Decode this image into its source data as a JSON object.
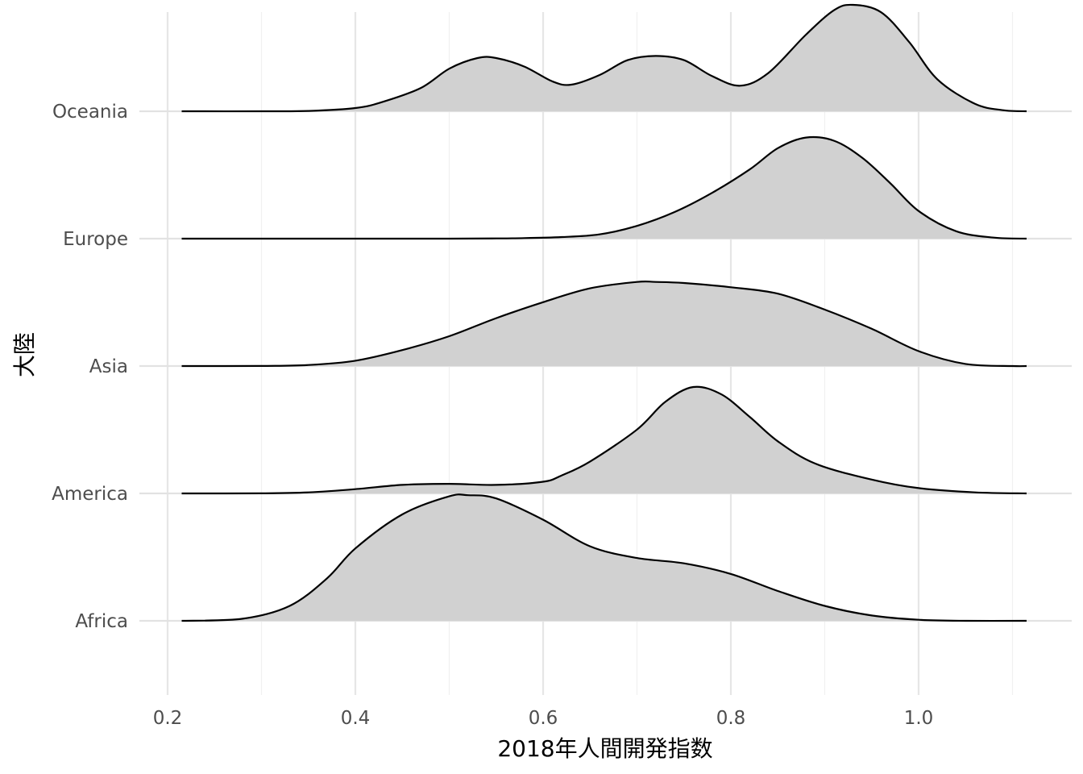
{
  "chart_data": {
    "type": "ridgeline",
    "xlabel": "2018年人間開発指数",
    "ylabel": "大陸",
    "xlim": [
      0.2,
      1.12
    ],
    "x_ticks": [
      "0.2",
      "0.4",
      "0.6",
      "0.8",
      "1.0"
    ],
    "x_tick_values": [
      0.2,
      0.4,
      0.6,
      0.8,
      1.0
    ],
    "categories": [
      "Africa",
      "America",
      "Asia",
      "Europe",
      "Oceania"
    ],
    "fill_color": "#d1d1d1",
    "line_color": "#000000",
    "grid": true,
    "series": [
      {
        "name": "Oceania",
        "x": [
          0.215,
          0.3,
          0.35,
          0.4,
          0.43,
          0.47,
          0.5,
          0.53,
          0.55,
          0.58,
          0.61,
          0.63,
          0.66,
          0.69,
          0.72,
          0.75,
          0.78,
          0.81,
          0.84,
          0.88,
          0.91,
          0.93,
          0.96,
          0.99,
          1.02,
          1.06,
          1.09,
          1.115
        ],
        "y": [
          0.0,
          0.0,
          0.003,
          0.03,
          0.09,
          0.22,
          0.4,
          0.5,
          0.5,
          0.42,
          0.28,
          0.25,
          0.34,
          0.48,
          0.52,
          0.48,
          0.33,
          0.24,
          0.36,
          0.72,
          0.95,
          1.0,
          0.93,
          0.65,
          0.3,
          0.07,
          0.01,
          0.0
        ]
      },
      {
        "name": "Europe",
        "x": [
          0.215,
          0.4,
          0.5,
          0.55,
          0.58,
          0.62,
          0.66,
          0.7,
          0.74,
          0.78,
          0.82,
          0.85,
          0.88,
          0.91,
          0.94,
          0.97,
          1.0,
          1.04,
          1.08,
          1.115
        ],
        "y": [
          0.0,
          0.0,
          0.0,
          0.002,
          0.005,
          0.015,
          0.04,
          0.12,
          0.25,
          0.43,
          0.65,
          0.85,
          0.95,
          0.92,
          0.76,
          0.52,
          0.26,
          0.07,
          0.01,
          0.0
        ]
      },
      {
        "name": "Asia",
        "x": [
          0.215,
          0.3,
          0.35,
          0.4,
          0.45,
          0.5,
          0.55,
          0.6,
          0.65,
          0.7,
          0.72,
          0.75,
          0.8,
          0.85,
          0.9,
          0.95,
          1.0,
          1.05,
          1.1,
          1.115
        ],
        "y": [
          0.0,
          0.001,
          0.01,
          0.05,
          0.15,
          0.28,
          0.45,
          0.6,
          0.73,
          0.79,
          0.79,
          0.78,
          0.74,
          0.68,
          0.53,
          0.35,
          0.14,
          0.02,
          0.0,
          0.0
        ]
      },
      {
        "name": "America",
        "x": [
          0.215,
          0.3,
          0.35,
          0.4,
          0.45,
          0.5,
          0.55,
          0.6,
          0.62,
          0.65,
          0.7,
          0.73,
          0.76,
          0.79,
          0.82,
          0.85,
          0.89,
          0.95,
          1.0,
          1.06,
          1.115
        ],
        "y": [
          0.0,
          0.001,
          0.01,
          0.04,
          0.08,
          0.09,
          0.08,
          0.11,
          0.17,
          0.3,
          0.6,
          0.86,
          1.0,
          0.93,
          0.72,
          0.49,
          0.28,
          0.13,
          0.05,
          0.01,
          0.0
        ]
      },
      {
        "name": "Africa",
        "x": [
          0.215,
          0.28,
          0.33,
          0.37,
          0.4,
          0.45,
          0.5,
          0.52,
          0.55,
          0.6,
          0.65,
          0.7,
          0.75,
          0.8,
          0.85,
          0.9,
          0.95,
          1.0,
          1.05,
          1.115
        ],
        "y": [
          0.0,
          0.02,
          0.14,
          0.4,
          0.68,
          1.0,
          1.17,
          1.18,
          1.15,
          0.95,
          0.7,
          0.59,
          0.54,
          0.44,
          0.28,
          0.14,
          0.05,
          0.01,
          0.0,
          0.0
        ]
      }
    ]
  }
}
